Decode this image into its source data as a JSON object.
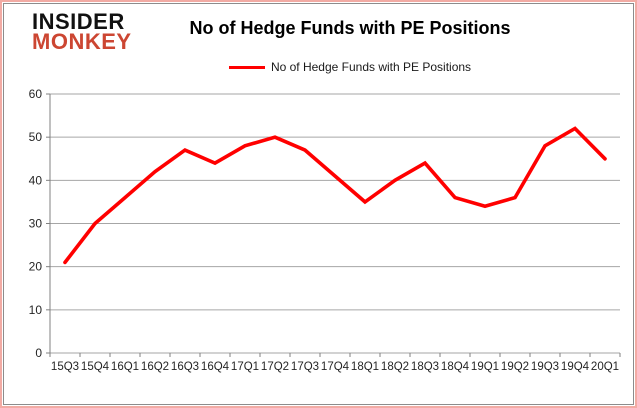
{
  "logo": {
    "line1": "INSIDER",
    "line2": "MONKEY"
  },
  "header": {
    "title": "No of Hedge Funds with PE Positions"
  },
  "legend": {
    "label": "No of Hedge Funds with PE Positions",
    "color": "#ff0000"
  },
  "chart_data": {
    "type": "line",
    "title": "No of Hedge Funds with PE Positions",
    "categories": [
      "15Q3",
      "15Q4",
      "16Q1",
      "16Q2",
      "16Q3",
      "16Q4",
      "17Q1",
      "17Q2",
      "17Q3",
      "17Q4",
      "18Q1",
      "18Q2",
      "18Q3",
      "18Q4",
      "19Q1",
      "19Q2",
      "19Q3",
      "19Q4",
      "20Q1"
    ],
    "series": [
      {
        "name": "No of Hedge Funds with PE Positions",
        "color": "#ff0000",
        "values": [
          21,
          30,
          36,
          42,
          47,
          44,
          48,
          50,
          47,
          41,
          35,
          40,
          44,
          36,
          34,
          36,
          48,
          52,
          45
        ]
      }
    ],
    "xlabel": "",
    "ylabel": "",
    "ylim": [
      0,
      60
    ],
    "yticks": [
      0,
      10,
      20,
      30,
      40,
      50,
      60
    ],
    "grid": true,
    "legend_position": "top"
  },
  "colors": {
    "line": "#ff0000",
    "gridline": "#a6a6a6",
    "axis": "#808080",
    "tick_label": "#262626",
    "logo_red": "#cc4632",
    "border_outer": "#f2aba4",
    "border_inner": "#8c8c8c"
  }
}
